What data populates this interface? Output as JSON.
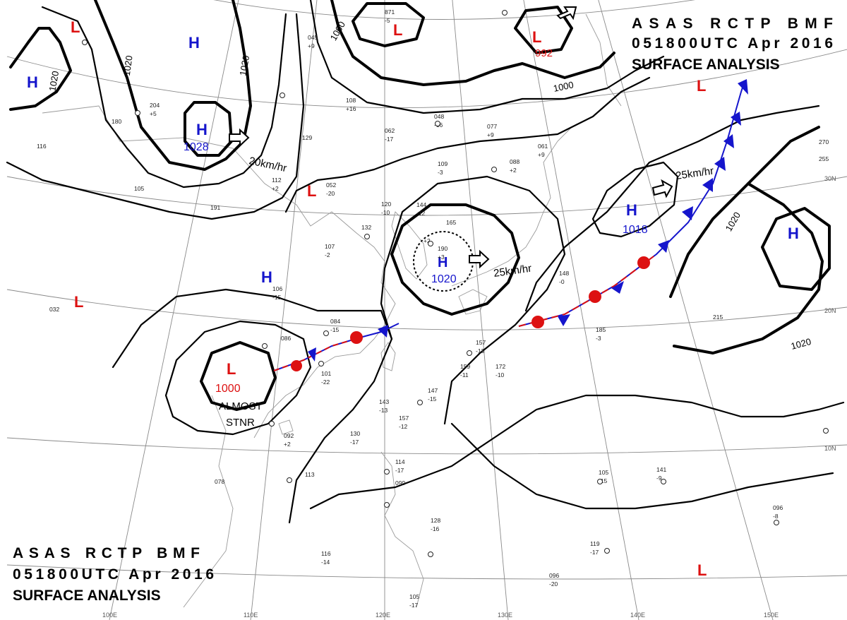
{
  "header": {
    "line1": "ASAS RCTP BMF",
    "line2": "051800UTC Apr 2016",
    "line3": "SURFACE ANALYSIS"
  },
  "colors": {
    "high": "#1515cc",
    "low": "#dd1111",
    "isobar": "#000000",
    "grid": "#8a8a8a",
    "coast": "#9a9a9a"
  },
  "pressure_systems": [
    {
      "id": "H1",
      "type": "H",
      "value": ""
    },
    {
      "id": "H2",
      "type": "H",
      "value": ""
    },
    {
      "id": "H3",
      "type": "H",
      "value": "1028"
    },
    {
      "id": "H4",
      "type": "H",
      "value": ""
    },
    {
      "id": "H5",
      "type": "H",
      "value": "1020"
    },
    {
      "id": "H6",
      "type": "H",
      "value": "1018"
    },
    {
      "id": "H7",
      "type": "H",
      "value": ""
    },
    {
      "id": "L1",
      "type": "L",
      "value": ""
    },
    {
      "id": "L2",
      "type": "L",
      "value": ""
    },
    {
      "id": "L3",
      "type": "L",
      "value": "992"
    },
    {
      "id": "L4",
      "type": "L",
      "value": ""
    },
    {
      "id": "L5",
      "type": "L",
      "value": ""
    },
    {
      "id": "L6",
      "type": "L",
      "value": ""
    },
    {
      "id": "L7",
      "type": "L",
      "value": "1000"
    },
    {
      "id": "L8",
      "type": "L",
      "value": ""
    }
  ],
  "isobar_labels": [
    "1020",
    "1020",
    "1020",
    "1000",
    "1000",
    "1020",
    "1020"
  ],
  "movements": [
    "20km/hr",
    "25km/hr",
    "25km/hr"
  ],
  "annotations": {
    "stationary_line1": "ALMOST",
    "stationary_line2": "STNR"
  },
  "lat_labels": [
    "30N",
    "20N",
    "10N"
  ],
  "lon_labels": [
    "100E",
    "110E",
    "120E",
    "130E",
    "140E",
    "150E"
  ],
  "stations": [
    "204",
    "+5",
    "180",
    "116",
    "105",
    "191",
    "112",
    "+2",
    "129",
    "052",
    "-20",
    "120",
    "-10",
    "144",
    "-12",
    "132",
    "109",
    "-3",
    "062",
    "-17",
    "048",
    "-16",
    "077",
    "+9",
    "165",
    "+2",
    "190",
    "+3",
    "107",
    "-2",
    "106",
    "-15",
    "084",
    "-15",
    "086",
    "101",
    "-22",
    "157",
    "-13",
    "159",
    "-11",
    "172",
    "-10",
    "147",
    "-15",
    "143",
    "-13",
    "157",
    "-12",
    "130",
    "-17",
    "092",
    "+2",
    "078",
    "113",
    "114",
    "-17",
    "099",
    "128",
    "-16",
    "116",
    "-14",
    "105",
    "-17",
    "185",
    "-3",
    "215",
    "105",
    "-15",
    "141",
    "-9",
    "096",
    "-8",
    "270",
    "255",
    "148",
    "-0",
    "061",
    "+9",
    "088",
    "+2",
    "032",
    "119",
    "-17",
    "096",
    "-20",
    "871",
    "-5",
    "045",
    "+9",
    "108",
    "+16"
  ]
}
